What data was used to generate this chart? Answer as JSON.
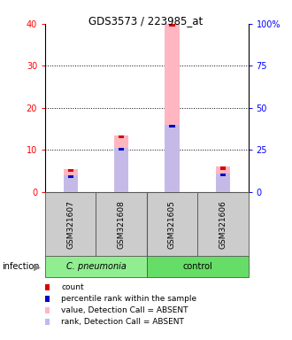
{
  "title": "GDS3573 / 223985_at",
  "samples": [
    "GSM321607",
    "GSM321608",
    "GSM321605",
    "GSM321606"
  ],
  "value_bars": [
    5.5,
    13.5,
    40.0,
    6.0
  ],
  "rank_bars": [
    4.0,
    10.5,
    16.0,
    4.5
  ],
  "value_color": "#FFB6C1",
  "rank_color": "#BBBBEE",
  "count_color": "#DD0000",
  "percentile_color": "#0000CC",
  "ylim_left": [
    0,
    40
  ],
  "ylim_right": [
    0,
    100
  ],
  "yticks_left": [
    0,
    10,
    20,
    30,
    40
  ],
  "yticks_right": [
    0,
    25,
    50,
    75,
    100
  ],
  "ytick_labels_left": [
    "0",
    "10",
    "20",
    "30",
    "40"
  ],
  "ytick_labels_right": [
    "0",
    "25",
    "50",
    "75",
    "100%"
  ],
  "bar_width": 0.28,
  "legend_items": [
    {
      "color": "#DD0000",
      "label": "count"
    },
    {
      "color": "#0000CC",
      "label": "percentile rank within the sample"
    },
    {
      "color": "#FFB6C1",
      "label": "value, Detection Call = ABSENT"
    },
    {
      "color": "#BBBBEE",
      "label": "rank, Detection Call = ABSENT"
    }
  ]
}
